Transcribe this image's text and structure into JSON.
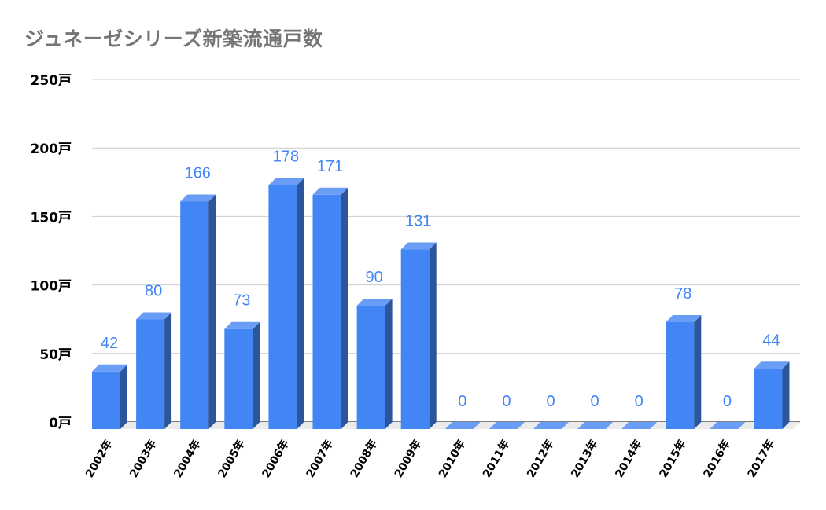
{
  "title": "ジュネーゼシリーズ新築流通戸数",
  "colors": {
    "bar_front": "#4285f4",
    "bar_top": "#6a9ef6",
    "bar_side": "#2c559c",
    "value_label": "#4285f4",
    "grid": "#cccccc",
    "floor": "#ebebeb",
    "title": "#757575"
  },
  "chart_data": {
    "type": "bar",
    "style": "3d",
    "title": "ジュネーゼシリーズ新築流通戸数",
    "xlabel": "",
    "ylabel": "",
    "categories": [
      "2002年",
      "2003年",
      "2004年",
      "2005年",
      "2006年",
      "2007年",
      "2008年",
      "2009年",
      "2010年",
      "2011年",
      "2012年",
      "2013年",
      "2014年",
      "2015年",
      "2016年",
      "2017年"
    ],
    "values": [
      42,
      80,
      166,
      73,
      178,
      171,
      90,
      131,
      0,
      0,
      0,
      0,
      0,
      78,
      0,
      44
    ],
    "y_ticks": [
      "0戸",
      "50戸",
      "100戸",
      "150戸",
      "200戸",
      "250戸"
    ],
    "y_tick_values": [
      0,
      50,
      100,
      150,
      200,
      250
    ],
    "ylim": [
      0,
      250
    ],
    "grid": true,
    "legend": "none",
    "data_labels": true
  }
}
